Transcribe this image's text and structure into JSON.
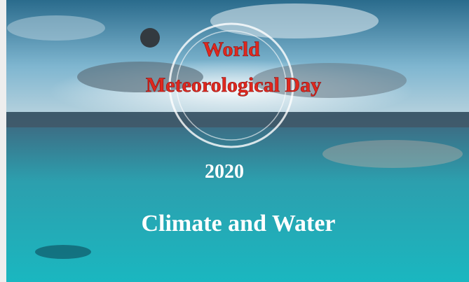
{
  "poster": {
    "title_line1": "World",
    "title_line2": "Meteorological Day",
    "year": "2020",
    "theme": "Climate and Water"
  }
}
